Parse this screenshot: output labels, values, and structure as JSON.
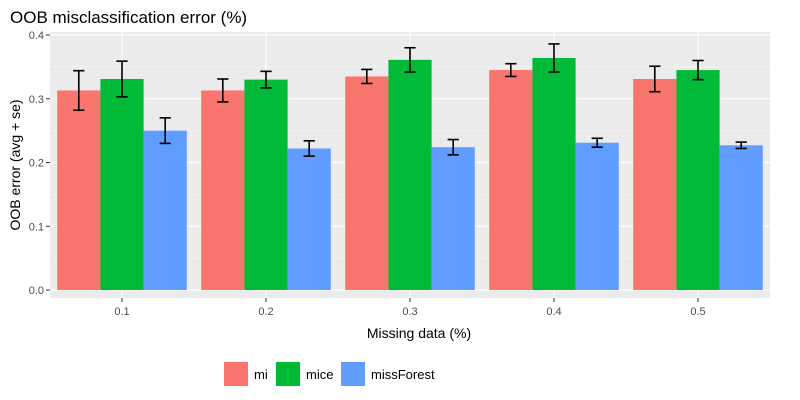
{
  "chart_data": {
    "type": "bar",
    "title": "OOB misclassification error (%)",
    "xlabel": "Missing data (%)",
    "ylabel": "OOB error (avg + se)",
    "categories": [
      "0.1",
      "0.2",
      "0.3",
      "0.4",
      "0.5"
    ],
    "ylim": [
      0,
      0.4
    ],
    "yticks": [
      "0.0",
      "0.1",
      "0.2",
      "0.3",
      "0.4"
    ],
    "grid": true,
    "legend_position": "bottom",
    "error_bars": true,
    "series": [
      {
        "name": "mi",
        "color": "#F8766D",
        "values": [
          0.313,
          0.313,
          0.335,
          0.345,
          0.331
        ],
        "se": [
          0.031,
          0.018,
          0.011,
          0.01,
          0.02
        ]
      },
      {
        "name": "mice",
        "color": "#00BA38",
        "values": [
          0.331,
          0.33,
          0.361,
          0.364,
          0.345
        ],
        "se": [
          0.028,
          0.013,
          0.019,
          0.022,
          0.015
        ]
      },
      {
        "name": "missForest",
        "color": "#619CFF",
        "values": [
          0.25,
          0.222,
          0.224,
          0.231,
          0.227
        ],
        "se": [
          0.02,
          0.012,
          0.012,
          0.007,
          0.005
        ]
      }
    ]
  }
}
